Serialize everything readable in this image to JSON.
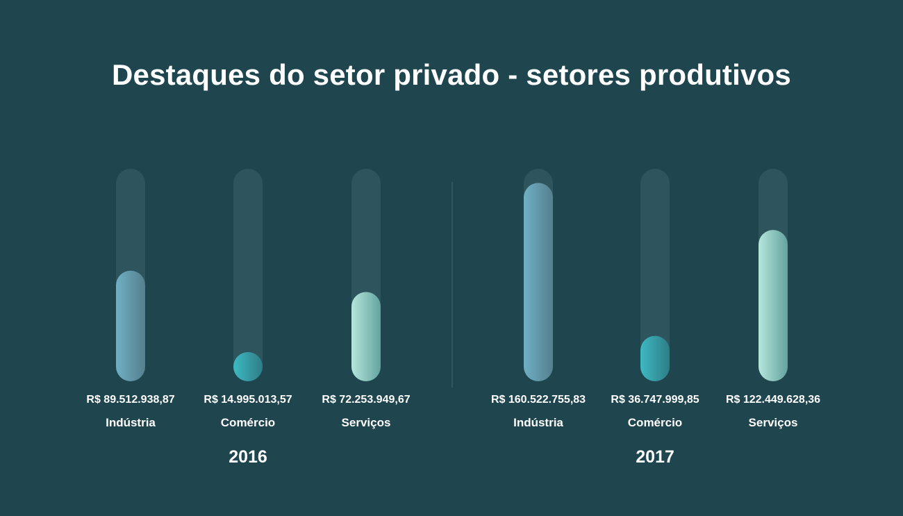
{
  "title": "Destaques do setor privado - setores produtivos",
  "chart_data": {
    "type": "bar",
    "title": "Destaques do setor privado - setores produtivos",
    "categories": [
      "Indústria",
      "Comércio",
      "Serviços"
    ],
    "ylim": [
      0,
      172000000
    ],
    "groups": [
      {
        "year": "2016",
        "bars": [
          {
            "category": "Indústria",
            "value": 89512938.87,
            "label": "R$ 89.512.938,87",
            "colors": [
              "#6fb0c4",
              "#557f8e"
            ]
          },
          {
            "category": "Comércio",
            "value": 14995013.57,
            "label": "R$ 14.995.013,57",
            "colors": [
              "#3dbac2",
              "#2e7c86"
            ]
          },
          {
            "category": "Serviços",
            "value": 72253949.67,
            "label": "R$ 72.253.949,67",
            "colors": [
              "#b5e6dc",
              "#63a39f"
            ]
          }
        ]
      },
      {
        "year": "2017",
        "bars": [
          {
            "category": "Indústria",
            "value": 160522755.83,
            "label": "R$ 160.522.755,83",
            "colors": [
              "#6fb0c4",
              "#557f8e"
            ]
          },
          {
            "category": "Comércio",
            "value": 36747999.85,
            "label": "R$ 36.747.999,85",
            "colors": [
              "#3dbac2",
              "#2e7c86"
            ]
          },
          {
            "category": "Serviços",
            "value": 122449628.36,
            "label": "R$ 122.449.628,36",
            "colors": [
              "#b5e6dc",
              "#63a39f"
            ]
          }
        ]
      }
    ]
  },
  "colors": {
    "background": "#1f454e",
    "track": "#2e555e",
    "text": "#ffffff"
  }
}
